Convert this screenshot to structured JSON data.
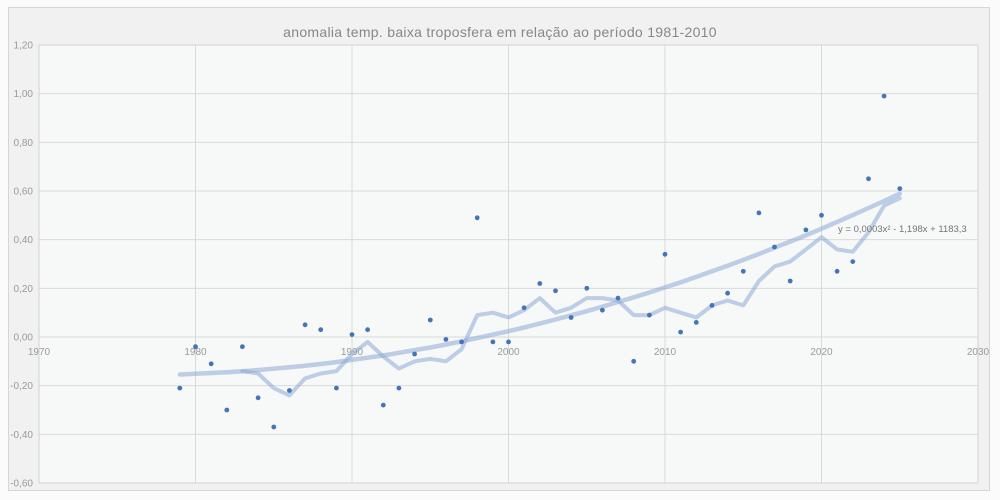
{
  "chart": {
    "title": "anomalia temp. baixa troposfera em relação ao período 1981-2010",
    "equation_label": "y = 0,0003x² - 1,198x + 1183,3"
  },
  "chart_data": {
    "type": "scatter",
    "title": "anomalia temp. baixa troposfera em relação ao período 1981-2010",
    "xlabel": "",
    "ylabel": "",
    "xlim": [
      1970,
      2030
    ],
    "ylim": [
      -0.6,
      1.2
    ],
    "grid": true,
    "legend_position": "none",
    "x_tick_labels": [
      "1970",
      "1980",
      "1990",
      "2000",
      "2010",
      "2020",
      "2030"
    ],
    "x_tick_values": [
      1970,
      1980,
      1990,
      2000,
      2010,
      2020,
      2030
    ],
    "y_tick_labels": [
      "-0,60",
      "-0,40",
      "-0,20",
      "0,00",
      "0,20",
      "0,40",
      "0,60",
      "0,80",
      "1,00",
      "1,20"
    ],
    "y_tick_values": [
      -0.6,
      -0.4,
      -0.2,
      0.0,
      0.2,
      0.4,
      0.6,
      0.8,
      1.0,
      1.2
    ],
    "series": [
      {
        "id": "annual-anomaly-scatter",
        "type": "scatter",
        "color": "#4674b8",
        "years": [
          1979,
          1980,
          1981,
          1982,
          1983,
          1984,
          1985,
          1986,
          1987,
          1988,
          1989,
          1990,
          1991,
          1992,
          1993,
          1994,
          1995,
          1996,
          1997,
          1998,
          1999,
          2000,
          2001,
          2002,
          2003,
          2004,
          2005,
          2006,
          2007,
          2008,
          2009,
          2010,
          2011,
          2012,
          2013,
          2014,
          2015,
          2016,
          2017,
          2018,
          2019,
          2020,
          2021,
          2022,
          2023,
          2024,
          2025
        ],
        "values": [
          -0.21,
          -0.04,
          -0.11,
          -0.3,
          -0.04,
          -0.25,
          -0.37,
          -0.22,
          0.05,
          0.03,
          -0.21,
          0.01,
          0.03,
          -0.28,
          -0.21,
          -0.07,
          0.07,
          -0.01,
          -0.02,
          0.49,
          -0.02,
          -0.02,
          0.12,
          0.22,
          0.19,
          0.08,
          0.2,
          0.11,
          0.16,
          -0.1,
          0.09,
          0.34,
          0.02,
          0.06,
          0.13,
          0.18,
          0.27,
          0.51,
          0.37,
          0.23,
          0.44,
          0.5,
          0.27,
          0.31,
          0.65,
          0.99,
          0.61
        ]
      },
      {
        "id": "moving-average-line",
        "type": "line",
        "color": "rgba(141,169,214,0.55)",
        "width": 4,
        "years": [
          1983,
          1984,
          1985,
          1986,
          1987,
          1988,
          1989,
          1990,
          1991,
          1992,
          1993,
          1994,
          1995,
          1996,
          1997,
          1998,
          1999,
          2000,
          2001,
          2002,
          2003,
          2004,
          2005,
          2006,
          2007,
          2008,
          2009,
          2010,
          2011,
          2012,
          2013,
          2014,
          2015,
          2016,
          2017,
          2018,
          2019,
          2020,
          2021,
          2022,
          2023,
          2024,
          2025
        ],
        "values": [
          -0.14,
          -0.15,
          -0.21,
          -0.24,
          -0.17,
          -0.15,
          -0.14,
          -0.07,
          -0.02,
          -0.08,
          -0.13,
          -0.1,
          -0.09,
          -0.1,
          -0.05,
          0.09,
          0.1,
          0.08,
          0.11,
          0.16,
          0.1,
          0.12,
          0.16,
          0.16,
          0.15,
          0.09,
          0.09,
          0.12,
          0.1,
          0.08,
          0.13,
          0.15,
          0.13,
          0.23,
          0.29,
          0.31,
          0.36,
          0.41,
          0.36,
          0.35,
          0.43,
          0.54,
          0.57
        ]
      },
      {
        "id": "polynomial-trendline",
        "type": "line",
        "color": "rgba(141,169,214,0.55)",
        "width": 4.5,
        "equation": "y = 0,0003x² - 1,198x + 1183,3",
        "years": [
          1979,
          1980,
          1981,
          1982,
          1983,
          1984,
          1985,
          1986,
          1987,
          1988,
          1989,
          1990,
          1991,
          1992,
          1993,
          1994,
          1995,
          1996,
          1997,
          1998,
          1999,
          2000,
          2001,
          2002,
          2003,
          2004,
          2005,
          2006,
          2007,
          2008,
          2009,
          2010,
          2011,
          2012,
          2013,
          2014,
          2015,
          2016,
          2017,
          2018,
          2019,
          2020,
          2021,
          2022,
          2023,
          2024,
          2025
        ],
        "values": [
          -0.154,
          -0.151,
          -0.148,
          -0.145,
          -0.141,
          -0.136,
          -0.13,
          -0.124,
          -0.118,
          -0.111,
          -0.103,
          -0.094,
          -0.085,
          -0.076,
          -0.065,
          -0.054,
          -0.043,
          -0.031,
          -0.018,
          -0.004,
          0.01,
          0.024,
          0.039,
          0.055,
          0.072,
          0.089,
          0.106,
          0.125,
          0.144,
          0.163,
          0.183,
          0.204,
          0.225,
          0.247,
          0.27,
          0.293,
          0.317,
          0.341,
          0.367,
          0.392,
          0.418,
          0.445,
          0.473,
          0.501,
          0.53,
          0.559,
          0.589
        ]
      }
    ]
  }
}
